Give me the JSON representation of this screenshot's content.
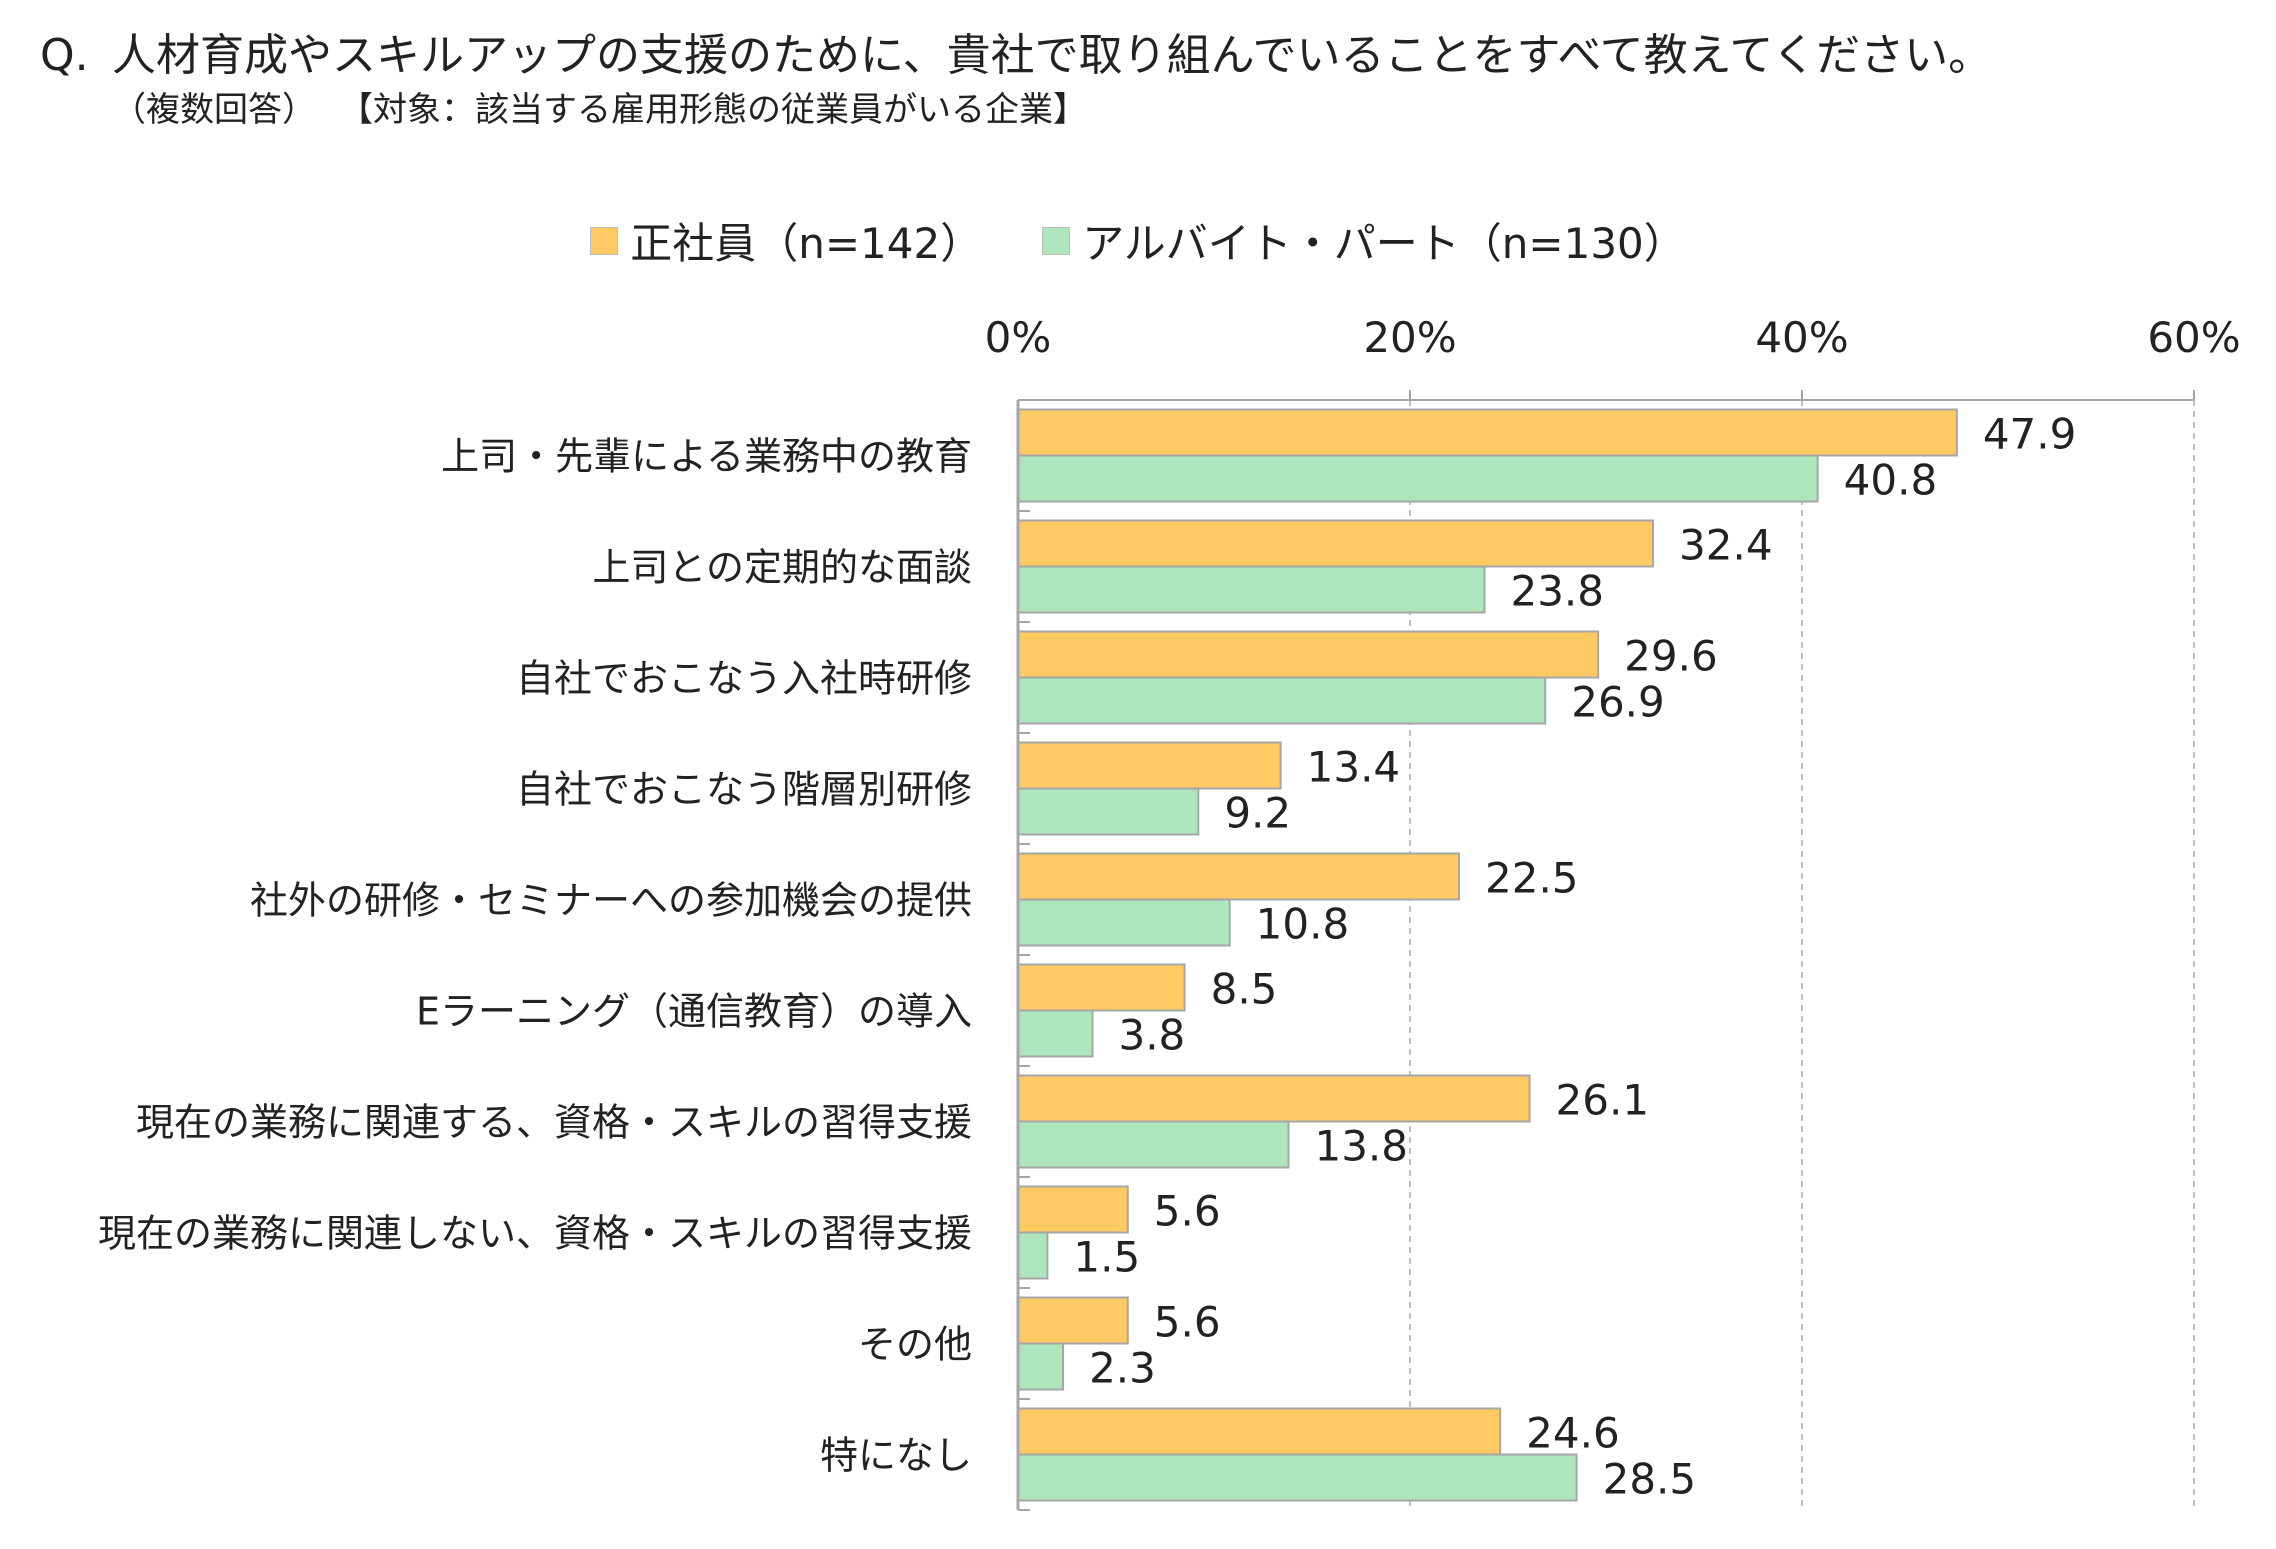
{
  "title": {
    "prefix": "Q.",
    "question": "人材育成やスキルアップの支援のために、貴社で取り組んでいることをすべて教えてください。",
    "note": "（複数回答）",
    "target": "【対象：該当する雇用形態の従業員がいる企業】"
  },
  "colors": {
    "series1": "#ffca64",
    "series2": "#ade6bd",
    "bar_border": "#a6a6a6",
    "axis": "#a6a6a6",
    "grid": "#bfbfbf"
  },
  "chart_data": {
    "type": "bar",
    "orientation": "horizontal",
    "categories": [
      "上司・先輩による業務中の教育",
      "上司との定期的な面談",
      "自社でおこなう入社時研修",
      "自社でおこなう階層別研修",
      "社外の研修・セミナーへの参加機会の提供",
      "Eラーニング（通信教育）の導入",
      "現在の業務に関連する、資格・スキルの習得支援",
      "現在の業務に関連しない、資格・スキルの習得支援",
      "その他",
      "特になし"
    ],
    "series": [
      {
        "name": "正社員（n=142）",
        "values": [
          47.9,
          32.4,
          29.6,
          13.4,
          22.5,
          8.5,
          26.1,
          5.6,
          5.6,
          24.6
        ]
      },
      {
        "name": "アルバイト・パート（n=130）",
        "values": [
          40.8,
          23.8,
          26.9,
          9.2,
          10.8,
          3.8,
          13.8,
          1.5,
          2.3,
          28.5
        ]
      }
    ],
    "xlim": [
      0,
      60
    ],
    "x_ticks": [
      0,
      20,
      40,
      60
    ],
    "x_tick_labels": [
      "0%",
      "20%",
      "40%",
      "60%"
    ],
    "x_axis_position": "top",
    "grid": true,
    "grid_style": "dashed",
    "legend_position": "top-center"
  }
}
